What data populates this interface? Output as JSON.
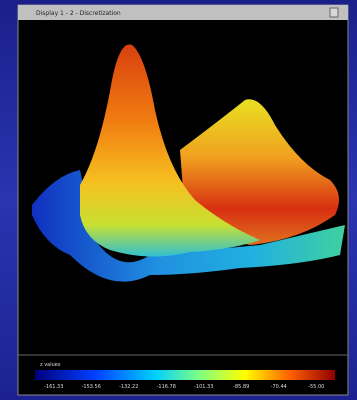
{
  "window": {
    "title": "Display 1 - 2 - Discretization"
  },
  "colorbar": {
    "label": "z values",
    "tick_labels": [
      "-161.33",
      "-153.56",
      "-132.22",
      "-116.78",
      "-101.33",
      "-85.89",
      "-70.44",
      "-55.00"
    ]
  }
}
